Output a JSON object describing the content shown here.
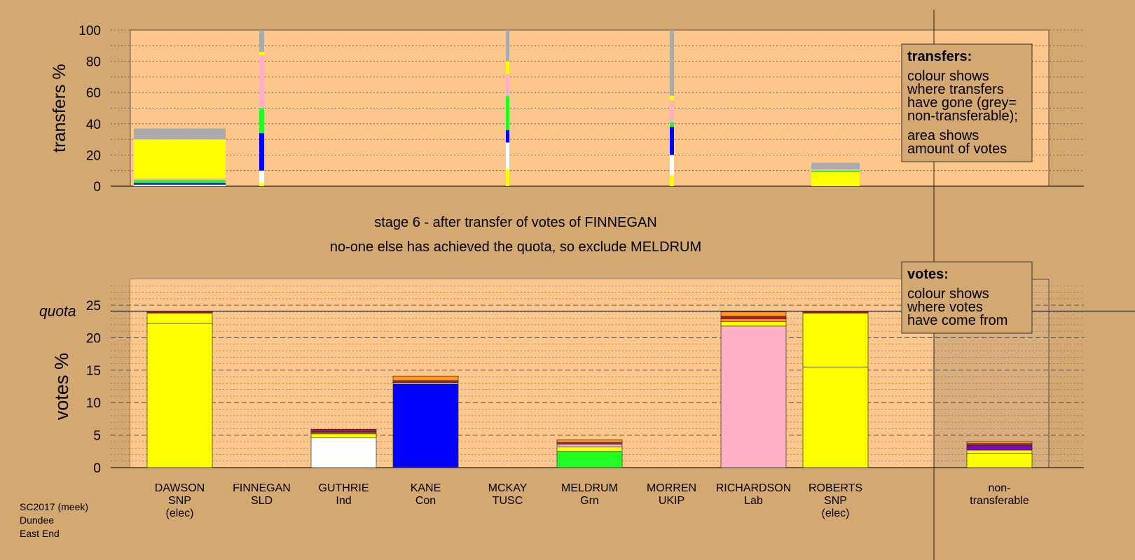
{
  "colors": {
    "background": "#d4a871",
    "plot_bg": "#fdc78c",
    "right_zone": "#d9ad7c",
    "box_bg": "#d4a871",
    "SNP": "#ffff00",
    "Ind": "#ffffff",
    "Con": "#0000ff",
    "Grn": "#22ff22",
    "Lab": "#ffb0c4",
    "SLD": "#ff9922",
    "TUSC": "#aa2233",
    "UKIP": "#8800cc",
    "nontransferable": "#aaaaaa"
  },
  "texts": {
    "stage_line": "stage 6 - after transfer of votes of FINNEGAN",
    "exclude_line": "no-one else has achieved the quota, so exclude MELDRUM",
    "footer": [
      "SC2017 (meek)",
      "Dundee",
      "East End"
    ]
  },
  "transfers_box": {
    "title": "transfers:",
    "lines1": [
      "colour shows",
      "where transfers",
      "have gone (grey=",
      "non-transferable);"
    ],
    "lines2": [
      "area shows",
      "amount of votes"
    ]
  },
  "votes_box": {
    "title": "votes:",
    "lines": [
      "colour shows",
      "where votes",
      "have come from"
    ]
  },
  "chart_data": [
    {
      "type": "bar",
      "name": "transfers",
      "ylabel": "transfers %",
      "ylim": [
        0,
        100
      ],
      "yticks": [
        0,
        20,
        40,
        60,
        80,
        100
      ],
      "grid": true,
      "bars": [
        {
          "candidate": "DAWSON",
          "segments": [
            {
              "party": "Ind",
              "from": 0,
              "to": 1
            },
            {
              "party": "Con",
              "from": 1,
              "to": 2
            },
            {
              "party": "Grn",
              "from": 2,
              "to": 4
            },
            {
              "party": "Lab",
              "from": 4,
              "to": 5
            },
            {
              "party": "SNP",
              "from": 5,
              "to": 30
            },
            {
              "party": "nontransferable",
              "from": 30,
              "to": 37
            }
          ]
        },
        {
          "candidate": "FINNEGAN",
          "segments": [
            {
              "party": "SNP",
              "from": 0,
              "to": 2
            },
            {
              "party": "Ind",
              "from": 2,
              "to": 10
            },
            {
              "party": "Con",
              "from": 10,
              "to": 34
            },
            {
              "party": "Grn",
              "from": 34,
              "to": 50
            },
            {
              "party": "Lab",
              "from": 50,
              "to": 84
            },
            {
              "party": "SNP",
              "from": 84,
              "to": 86
            },
            {
              "party": "nontransferable",
              "from": 86,
              "to": 100
            }
          ]
        },
        {
          "candidate": "MCKAY",
          "segments": [
            {
              "party": "SNP",
              "from": 0,
              "to": 11
            },
            {
              "party": "Ind",
              "from": 11,
              "to": 28
            },
            {
              "party": "Con",
              "from": 28,
              "to": 36
            },
            {
              "party": "Grn",
              "from": 36,
              "to": 58
            },
            {
              "party": "Lab",
              "from": 58,
              "to": 72
            },
            {
              "party": "SNP",
              "from": 72,
              "to": 80
            },
            {
              "party": "nontransferable",
              "from": 80,
              "to": 100
            }
          ]
        },
        {
          "candidate": "MORREN",
          "segments": [
            {
              "party": "SNP",
              "from": 0,
              "to": 7
            },
            {
              "party": "Ind",
              "from": 7,
              "to": 20
            },
            {
              "party": "Con",
              "from": 20,
              "to": 38
            },
            {
              "party": "Grn",
              "from": 38,
              "to": 41
            },
            {
              "party": "Lab",
              "from": 41,
              "to": 55
            },
            {
              "party": "SNP",
              "from": 55,
              "to": 58
            },
            {
              "party": "nontransferable",
              "from": 58,
              "to": 100
            }
          ]
        },
        {
          "candidate": "ROBERTS",
          "segments": [
            {
              "party": "SNP",
              "from": 0,
              "to": 9
            },
            {
              "party": "Grn",
              "from": 9,
              "to": 10
            },
            {
              "party": "Lab",
              "from": 10,
              "to": 11
            },
            {
              "party": "nontransferable",
              "from": 11,
              "to": 15
            }
          ]
        }
      ]
    },
    {
      "type": "bar",
      "name": "votes",
      "ylabel": "votes %",
      "ylim": [
        0,
        29
      ],
      "yticks": [
        0,
        5,
        10,
        15,
        20,
        25
      ],
      "quota": 24.1,
      "quota_label": "quota",
      "grid": true,
      "categories": [
        {
          "name": "DAWSON",
          "party": "SNP",
          "note": "(elec)"
        },
        {
          "name": "FINNEGAN",
          "party": "SLD",
          "note": ""
        },
        {
          "name": "GUTHRIE",
          "party": "Ind",
          "note": ""
        },
        {
          "name": "KANE",
          "party": "Con",
          "note": ""
        },
        {
          "name": "MCKAY",
          "party": "TUSC",
          "note": ""
        },
        {
          "name": "MELDRUM",
          "party": "Grn",
          "note": ""
        },
        {
          "name": "MORREN",
          "party": "UKIP",
          "note": ""
        },
        {
          "name": "RICHARDSON",
          "party": "Lab",
          "note": ""
        },
        {
          "name": "ROBERTS",
          "party": "SNP",
          "note": "(elec)"
        },
        {
          "name": "",
          "party": "",
          "note": ""
        },
        {
          "name": "non-",
          "party": "transferable",
          "note": ""
        }
      ],
      "bars": [
        {
          "candidate": "DAWSON",
          "segments": [
            {
              "party": "SNP",
              "from": 0,
              "to": 22.2
            },
            {
              "party": "SNP",
              "from": 22.2,
              "to": 23.8
            },
            {
              "party": "TUSC",
              "from": 23.8,
              "to": 24.1
            }
          ]
        },
        {
          "candidate": "GUTHRIE",
          "segments": [
            {
              "party": "Ind",
              "from": 0,
              "to": 4.6
            },
            {
              "party": "SNP",
              "from": 4.6,
              "to": 5.2
            },
            {
              "party": "SLD",
              "from": 5.2,
              "to": 5.4
            },
            {
              "party": "UKIP",
              "from": 5.4,
              "to": 5.6
            },
            {
              "party": "TUSC",
              "from": 5.6,
              "to": 5.9
            }
          ]
        },
        {
          "candidate": "KANE",
          "segments": [
            {
              "party": "Con",
              "from": 0,
              "to": 12.9
            },
            {
              "party": "SNP",
              "from": 12.9,
              "to": 13.1
            },
            {
              "party": "TUSC",
              "from": 13.1,
              "to": 13.4
            },
            {
              "party": "SLD",
              "from": 13.4,
              "to": 14.1
            }
          ]
        },
        {
          "candidate": "MELDRUM",
          "segments": [
            {
              "party": "Grn",
              "from": 0,
              "to": 2.5
            },
            {
              "party": "SNP",
              "from": 2.5,
              "to": 3.2
            },
            {
              "party": "Lab",
              "from": 3.2,
              "to": 3.6
            },
            {
              "party": "TUSC",
              "from": 3.6,
              "to": 3.9
            },
            {
              "party": "SLD",
              "from": 3.9,
              "to": 4.3
            }
          ]
        },
        {
          "candidate": "RICHARDSON",
          "segments": [
            {
              "party": "Lab",
              "from": 0,
              "to": 21.8
            },
            {
              "party": "SNP",
              "from": 21.8,
              "to": 22.5
            },
            {
              "party": "SLD",
              "from": 22.5,
              "to": 22.9
            },
            {
              "party": "TUSC",
              "from": 22.9,
              "to": 23.3
            },
            {
              "party": "SLD",
              "from": 23.3,
              "to": 24.0
            }
          ]
        },
        {
          "candidate": "ROBERTS",
          "segments": [
            {
              "party": "SNP",
              "from": 0,
              "to": 15.5
            },
            {
              "party": "SNP",
              "from": 15.5,
              "to": 23.8
            },
            {
              "party": "TUSC",
              "from": 23.8,
              "to": 24.1
            }
          ]
        },
        {
          "candidate": "non-transferable",
          "segments": [
            {
              "party": "SNP",
              "from": 0,
              "to": 2.2
            },
            {
              "party": "SNP",
              "from": 2.2,
              "to": 2.7
            },
            {
              "party": "UKIP",
              "from": 2.7,
              "to": 3.4
            },
            {
              "party": "TUSC",
              "from": 3.4,
              "to": 3.7
            },
            {
              "party": "SLD",
              "from": 3.7,
              "to": 4.0
            }
          ]
        }
      ]
    }
  ]
}
